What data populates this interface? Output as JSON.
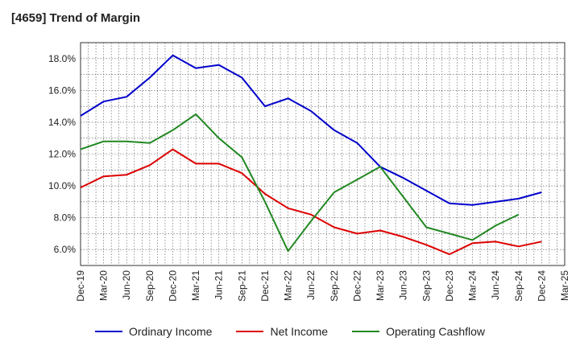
{
  "title": "[4659]  Trend of Margin",
  "chart_data": {
    "type": "line",
    "title": "[4659]  Trend of Margin",
    "xlabel": "",
    "ylabel": "",
    "categories": [
      "Dec-19",
      "Mar-20",
      "Jun-20",
      "Sep-20",
      "Dec-20",
      "Mar-21",
      "Jun-21",
      "Sep-21",
      "Dec-21",
      "Mar-22",
      "Jun-22",
      "Sep-22",
      "Dec-22",
      "Mar-23",
      "Jun-23",
      "Sep-23",
      "Dec-23",
      "Mar-24",
      "Jun-24",
      "Sep-24",
      "Dec-24",
      "Mar-25"
    ],
    "ylim": [
      5.0,
      19.0
    ],
    "yticks": [
      6.0,
      8.0,
      10.0,
      12.0,
      14.0,
      16.0,
      18.0
    ],
    "ytick_labels": [
      "6.0%",
      "8.0%",
      "10.0%",
      "12.0%",
      "14.0%",
      "16.0%",
      "18.0%"
    ],
    "grid": true,
    "legend_position": "bottom",
    "series": [
      {
        "name": "Ordinary Income",
        "color": "#0000cc",
        "values": [
          14.4,
          15.3,
          15.6,
          16.8,
          18.2,
          17.4,
          17.6,
          16.8,
          15.0,
          15.5,
          14.7,
          13.5,
          12.7,
          11.2,
          10.5,
          9.7,
          8.9,
          8.8,
          9.0,
          9.2,
          9.6,
          null
        ]
      },
      {
        "name": "Net Income",
        "color": "#dd0000",
        "values": [
          9.9,
          10.6,
          10.7,
          11.3,
          12.3,
          11.4,
          11.4,
          10.8,
          9.5,
          8.6,
          8.2,
          7.4,
          7.0,
          7.2,
          6.8,
          6.3,
          5.7,
          6.4,
          6.5,
          6.2,
          6.5,
          null
        ]
      },
      {
        "name": "Operating Cashflow",
        "color": "#228822",
        "values": [
          12.3,
          12.8,
          12.8,
          12.7,
          13.5,
          14.5,
          13.0,
          11.8,
          9.0,
          5.9,
          7.8,
          9.6,
          10.4,
          11.2,
          9.3,
          7.4,
          7.0,
          6.6,
          7.5,
          8.2,
          null,
          null
        ]
      }
    ]
  }
}
